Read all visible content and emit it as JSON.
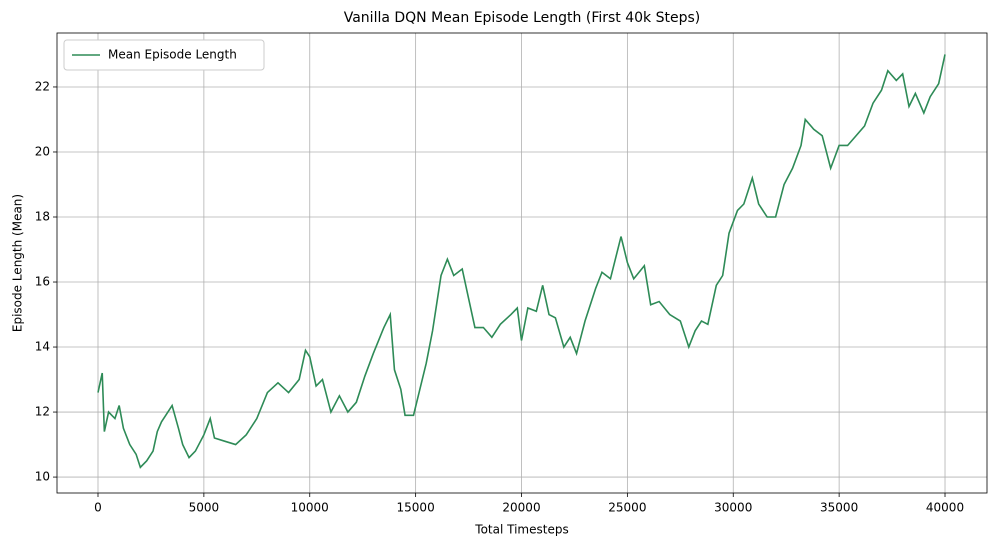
{
  "chart_data": {
    "type": "line",
    "title": "Vanilla DQN Mean Episode Length (First 40k Steps)",
    "x_label": "Total Timesteps",
    "y_label": "Episode Length (Mean)",
    "x": [
      0,
      200,
      300,
      500,
      800,
      1000,
      1200,
      1500,
      1800,
      2000,
      2300,
      2600,
      2800,
      3000,
      3200,
      3500,
      3800,
      4000,
      4300,
      4600,
      5000,
      5300,
      5500,
      6000,
      6500,
      7000,
      7500,
      8000,
      8500,
      9000,
      9500,
      9800,
      10000,
      10300,
      10600,
      11000,
      11400,
      11800,
      12200,
      12600,
      13000,
      13500,
      13800,
      14000,
      14300,
      14500,
      14900,
      15200,
      15500,
      15800,
      16200,
      16500,
      16800,
      17200,
      17500,
      17800,
      18200,
      18600,
      19000,
      19500,
      19800,
      20000,
      20300,
      20700,
      21000,
      21300,
      21600,
      22000,
      22300,
      22600,
      23000,
      23500,
      23800,
      24200,
      24700,
      25000,
      25300,
      25800,
      26100,
      26500,
      27000,
      27500,
      27900,
      28200,
      28500,
      28800,
      29200,
      29500,
      29800,
      30200,
      30500,
      30900,
      31200,
      31600,
      32000,
      32400,
      32800,
      33200,
      33400,
      33800,
      34200,
      34600,
      35000,
      35400,
      35800,
      36200,
      36600,
      37000,
      37300,
      37700,
      38000,
      38300,
      38600,
      39000,
      39300,
      39700,
      40000
    ],
    "series": [
      {
        "name": "Mean Episode Length",
        "color": "#2e8b57",
        "values": [
          12.6,
          13.2,
          11.4,
          12.0,
          11.8,
          12.2,
          11.5,
          11.0,
          10.7,
          10.3,
          10.5,
          10.8,
          11.4,
          11.7,
          11.9,
          12.2,
          11.5,
          11.0,
          10.6,
          10.8,
          11.3,
          11.8,
          11.2,
          11.1,
          11.0,
          11.3,
          11.8,
          12.6,
          12.9,
          12.6,
          13.0,
          13.9,
          13.7,
          12.8,
          13.0,
          12.0,
          12.5,
          12.0,
          12.3,
          13.1,
          13.8,
          14.6,
          15.0,
          13.3,
          12.7,
          11.9,
          11.9,
          12.7,
          13.5,
          14.5,
          16.2,
          16.7,
          16.2,
          16.4,
          15.5,
          14.6,
          14.6,
          14.3,
          14.7,
          15.0,
          15.2,
          14.2,
          15.2,
          15.1,
          15.9,
          15.0,
          14.9,
          14.0,
          14.3,
          13.8,
          14.8,
          15.8,
          16.3,
          16.1,
          17.4,
          16.6,
          16.1,
          16.5,
          15.3,
          15.4,
          15.0,
          14.8,
          14.0,
          14.5,
          14.8,
          14.7,
          15.9,
          16.2,
          17.5,
          18.2,
          18.4,
          19.2,
          18.4,
          18.0,
          18.0,
          19.0,
          19.5,
          20.2,
          21.0,
          20.7,
          20.5,
          19.5,
          20.2,
          20.2,
          20.5,
          20.8,
          21.5,
          21.9,
          22.5,
          22.2,
          22.4,
          21.4,
          21.8,
          21.2,
          21.7,
          22.1,
          23.0
        ]
      }
    ],
    "xlim": [
      -1936,
      41983
    ],
    "ylim": [
      9.51,
      23.66
    ],
    "xticks": [
      0,
      5000,
      10000,
      15000,
      20000,
      25000,
      30000,
      35000,
      40000
    ],
    "yticks": [
      10,
      12,
      14,
      16,
      18,
      20,
      22
    ],
    "grid": true,
    "legend": "upper left"
  }
}
